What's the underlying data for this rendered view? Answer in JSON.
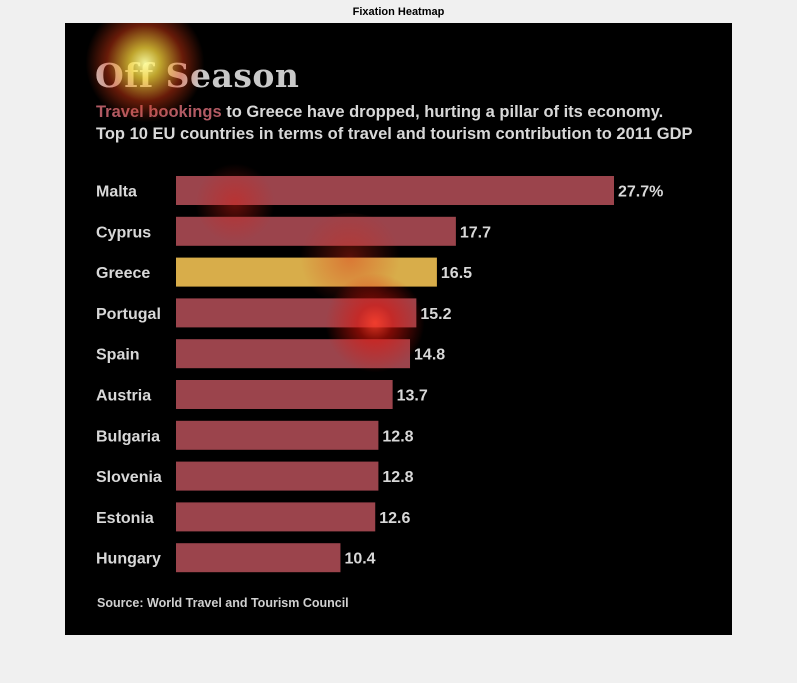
{
  "figure": {
    "title": "Fixation Heatmap"
  },
  "chart_data": {
    "type": "bar",
    "orientation": "horizontal",
    "title": "Off Season",
    "subtitle_lead": "Travel bookings",
    "subtitle_line1_rest": " to Greece have dropped, hurting a pillar of its economy.",
    "subtitle_line2": "Top 10 EU countries in terms of travel and tourism contribution to 2011 GDP",
    "categories": [
      "Malta",
      "Cyprus",
      "Greece",
      "Portugal",
      "Spain",
      "Austria",
      "Bulgaria",
      "Slovenia",
      "Estonia",
      "Hungary"
    ],
    "values": [
      27.7,
      17.7,
      16.5,
      15.2,
      14.8,
      13.7,
      12.8,
      12.8,
      12.6,
      10.4
    ],
    "value_labels": [
      "27.7%",
      "17.7",
      "16.5",
      "15.2",
      "14.8",
      "13.7",
      "12.8",
      "12.8",
      "12.6",
      "10.4"
    ],
    "highlight_category": "Greece",
    "xlim": [
      0,
      27.7
    ],
    "grid": false,
    "source": "Source: World Travel and Tourism Council",
    "colors": {
      "bar": "#9b444c",
      "highlight": "#d8ad4a",
      "background": "#000000",
      "text": "#d8d8d8"
    }
  }
}
